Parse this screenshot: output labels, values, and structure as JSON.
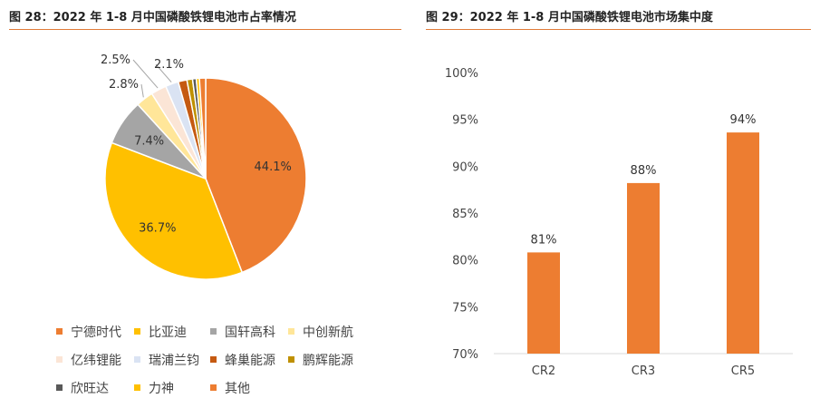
{
  "left_panel": {
    "title": "图 28：2022 年 1-8 月中国磷酸铁锂电池市占率情况"
  },
  "right_panel": {
    "title": "图 29：2022 年 1-8 月中国磷酸铁锂电池市场集中度"
  },
  "chart_data": [
    {
      "type": "pie",
      "title": "图 28：2022 年 1-8 月中国磷酸铁锂电池市占率情况",
      "slices": [
        {
          "label": "宁德时代",
          "value": 44.1,
          "display": "44.1%",
          "color": "#ed7d31"
        },
        {
          "label": "比亚迪",
          "value": 36.7,
          "display": "36.7%",
          "color": "#ffc000"
        },
        {
          "label": "国轩高科",
          "value": 7.4,
          "display": "7.4%",
          "color": "#a5a5a5"
        },
        {
          "label": "中创新航",
          "value": 2.8,
          "display": "2.8%",
          "color": "#ffe699"
        },
        {
          "label": "亿纬锂能",
          "value": 2.5,
          "display": "2.5%",
          "color": "#fbe5d6"
        },
        {
          "label": "瑞浦兰钧",
          "value": 2.1,
          "display": "2.1%",
          "color": "#dae3f3"
        },
        {
          "label": "蜂巢能源",
          "value": 1.4,
          "display": "",
          "color": "#c55a11"
        },
        {
          "label": "鹏辉能源",
          "value": 0.9,
          "display": "",
          "color": "#bf9000"
        },
        {
          "label": "欣旺达",
          "value": 0.6,
          "display": "",
          "color": "#595959"
        },
        {
          "label": "力神",
          "value": 0.5,
          "display": "",
          "color": "#ffc000"
        },
        {
          "label": "其他",
          "value": 1.0,
          "display": "",
          "color": "#ed7d31"
        }
      ],
      "legend_position": "bottom"
    },
    {
      "type": "bar",
      "title": "图 29：2022 年 1-8 月中国磷酸铁锂电池市场集中度",
      "categories": [
        "CR2",
        "CR3",
        "CR5"
      ],
      "values": [
        80.8,
        88.2,
        93.6
      ],
      "data_labels": [
        "81%",
        "88%",
        "94%"
      ],
      "ylim": [
        70,
        100
      ],
      "yticks": [
        70,
        75,
        80,
        85,
        90,
        95,
        100
      ],
      "ytick_labels": [
        "70%",
        "75%",
        "80%",
        "85%",
        "90%",
        "95%",
        "100%"
      ],
      "bar_color": "#ed7d31",
      "grid": false
    }
  ]
}
